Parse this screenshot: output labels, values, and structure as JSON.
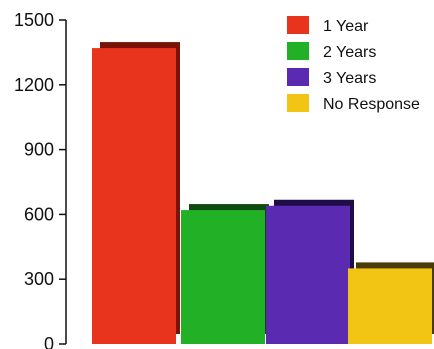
{
  "chart_data": {
    "type": "bar",
    "title": "",
    "xlabel": "",
    "ylabel": "",
    "ylim": [
      0,
      1500
    ],
    "y_ticks": [
      "1500",
      "1200",
      "900",
      "600",
      "300",
      "0"
    ],
    "grid": false,
    "legend_position": "top-right",
    "series": [
      {
        "name": "1 Year",
        "value": 1370,
        "color": "#e8341c",
        "shadow": "#7a1206"
      },
      {
        "name": "2 Years",
        "value": 620,
        "color": "#22b026",
        "shadow": "#0d4a10"
      },
      {
        "name": "3 Years",
        "value": 640,
        "color": "#5a2bb0",
        "shadow": "#1e0d46"
      },
      {
        "name": "No Response",
        "value": 350,
        "color": "#f2c414",
        "shadow": "#4a3a05"
      }
    ]
  }
}
